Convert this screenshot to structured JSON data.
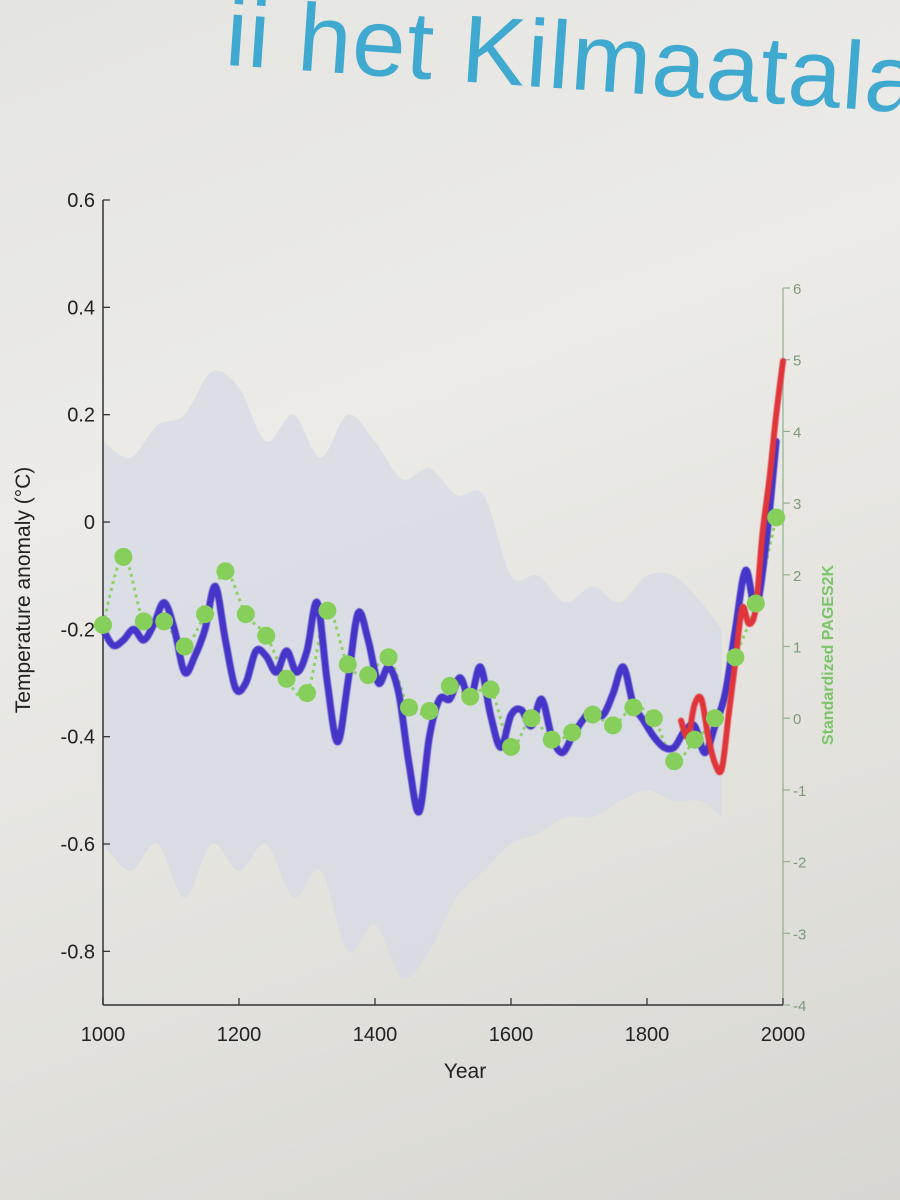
{
  "slide": {
    "title_fragment": "ii het Kilmaatalarmis"
  },
  "colors": {
    "reconstruction": "#4535c8",
    "instrumental": "#e0353a",
    "pages2k": "#86cf5a",
    "uncertainty": "#d6d9e4",
    "axis_right": "#8fb18f"
  },
  "chart_data": {
    "type": "line",
    "xlabel": "Year",
    "ylabel": "Temperature anomaly (°C)",
    "ylabel_right": "Standardized PAGES2K",
    "xlim": [
      1000,
      2000
    ],
    "ylim": [
      -0.9,
      0.6
    ],
    "ylim_right": [
      -4,
      6
    ],
    "xticks": [
      "1000",
      "1200",
      "1400",
      "1600",
      "1800",
      "2000"
    ],
    "yticks": [
      "0.6",
      "0.4",
      "0.2",
      "0",
      "-0.2",
      "-0.4",
      "-0.6",
      "-0.8"
    ],
    "yticks_right": [
      "6",
      "5",
      "4",
      "3",
      "2",
      "1",
      "0",
      "-1",
      "-2",
      "-3",
      "-4"
    ],
    "series": [
      {
        "key": "reconstruction",
        "x": [
          1000,
          1015,
          1030,
          1045,
          1060,
          1075,
          1090,
          1105,
          1120,
          1135,
          1150,
          1165,
          1180,
          1195,
          1210,
          1225,
          1240,
          1255,
          1270,
          1285,
          1300,
          1315,
          1330,
          1345,
          1360,
          1375,
          1390,
          1405,
          1420,
          1435,
          1450,
          1465,
          1480,
          1495,
          1510,
          1525,
          1540,
          1555,
          1570,
          1585,
          1600,
          1615,
          1630,
          1645,
          1660,
          1675,
          1690,
          1705,
          1720,
          1735,
          1750,
          1765,
          1780,
          1795,
          1810,
          1825,
          1840,
          1855,
          1870,
          1885,
          1900,
          1915,
          1930,
          1945,
          1960,
          1975,
          1990
        ],
        "y": [
          -0.2,
          -0.23,
          -0.22,
          -0.2,
          -0.22,
          -0.19,
          -0.15,
          -0.2,
          -0.28,
          -0.25,
          -0.2,
          -0.12,
          -0.22,
          -0.31,
          -0.3,
          -0.24,
          -0.25,
          -0.28,
          -0.24,
          -0.28,
          -0.24,
          -0.15,
          -0.3,
          -0.41,
          -0.3,
          -0.17,
          -0.22,
          -0.3,
          -0.27,
          -0.32,
          -0.45,
          -0.54,
          -0.4,
          -0.33,
          -0.33,
          -0.29,
          -0.33,
          -0.27,
          -0.36,
          -0.42,
          -0.36,
          -0.35,
          -0.38,
          -0.33,
          -0.4,
          -0.43,
          -0.4,
          -0.37,
          -0.35,
          -0.36,
          -0.32,
          -0.27,
          -0.34,
          -0.37,
          -0.4,
          -0.42,
          -0.42,
          -0.39,
          -0.38,
          -0.43,
          -0.38,
          -0.32,
          -0.2,
          -0.09,
          -0.16,
          -0.04,
          0.15
        ]
      },
      {
        "key": "instrumental",
        "x": [
          1850,
          1860,
          1870,
          1880,
          1890,
          1900,
          1910,
          1920,
          1930,
          1940,
          1950,
          1960,
          1970,
          1980,
          1990,
          2000
        ],
        "y": [
          -0.37,
          -0.4,
          -0.34,
          -0.33,
          -0.4,
          -0.45,
          -0.46,
          -0.36,
          -0.26,
          -0.16,
          -0.19,
          -0.16,
          -0.02,
          0.08,
          0.2,
          0.3
        ]
      },
      {
        "key": "pages2k",
        "x": [
          1000,
          1030,
          1060,
          1090,
          1120,
          1150,
          1180,
          1210,
          1240,
          1270,
          1300,
          1330,
          1360,
          1390,
          1420,
          1450,
          1480,
          1510,
          1540,
          1570,
          1600,
          1630,
          1660,
          1690,
          1720,
          1750,
          1780,
          1810,
          1840,
          1870,
          1900,
          1930,
          1960,
          1990
        ],
        "y": [
          1.3,
          2.25,
          1.35,
          1.35,
          1.0,
          1.45,
          2.05,
          1.45,
          1.15,
          0.55,
          0.35,
          1.5,
          0.75,
          0.6,
          0.85,
          0.15,
          0.1,
          0.45,
          0.3,
          0.4,
          -0.4,
          0.0,
          -0.3,
          -0.2,
          0.05,
          -0.1,
          0.15,
          0.0,
          -0.6,
          -0.3,
          0.0,
          0.85,
          1.6,
          2.8
        ]
      }
    ],
    "uncertainty_band": {
      "x": [
        1000,
        1040,
        1080,
        1120,
        1160,
        1200,
        1240,
        1280,
        1320,
        1360,
        1400,
        1440,
        1480,
        1520,
        1560,
        1600,
        1640,
        1680,
        1720,
        1760,
        1800,
        1840,
        1880,
        1910
      ],
      "upper": [
        0.15,
        0.12,
        0.18,
        0.2,
        0.28,
        0.25,
        0.15,
        0.2,
        0.12,
        0.2,
        0.15,
        0.08,
        0.1,
        0.05,
        0.05,
        -0.1,
        -0.1,
        -0.15,
        -0.12,
        -0.15,
        -0.1,
        -0.1,
        -0.15,
        -0.2
      ],
      "lower": [
        -0.6,
        -0.65,
        -0.6,
        -0.7,
        -0.6,
        -0.65,
        -0.6,
        -0.7,
        -0.65,
        -0.8,
        -0.75,
        -0.85,
        -0.8,
        -0.7,
        -0.65,
        -0.6,
        -0.58,
        -0.55,
        -0.55,
        -0.52,
        -0.5,
        -0.52,
        -0.52,
        -0.55
      ]
    }
  }
}
